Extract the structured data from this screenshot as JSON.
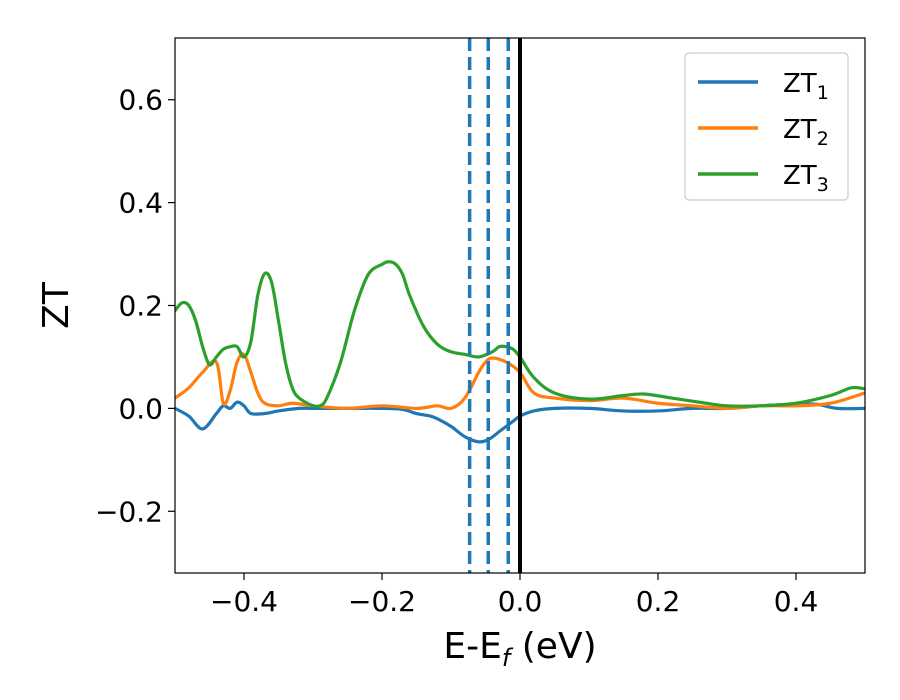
{
  "chart_data": {
    "type": "line",
    "xlabel": "E-E",
    "xlabel_sub": "f",
    "xlabel_unit": " (eV)",
    "ylabel": "ZT",
    "xlim": [
      -0.5,
      0.5
    ],
    "ylim": [
      -0.32,
      0.72
    ],
    "x_ticks": [
      -0.4,
      -0.2,
      0.0,
      0.2,
      0.4
    ],
    "x_tick_labels": [
      "−0.4",
      "−0.2",
      "0.0",
      "0.2",
      "0.4"
    ],
    "y_ticks": [
      -0.2,
      0.0,
      0.2,
      0.4,
      0.6
    ],
    "y_tick_labels": [
      "−0.2",
      "0.0",
      "0.2",
      "0.4",
      "0.6"
    ],
    "grid": false,
    "legend_position": "top-right",
    "vertical_lines": [
      {
        "x": -0.073,
        "style": "dashed",
        "color": "#1f77b4"
      },
      {
        "x": -0.046,
        "style": "dashed",
        "color": "#1f77b4"
      },
      {
        "x": -0.017,
        "style": "dashed",
        "color": "#1f77b4"
      },
      {
        "x": 0.0,
        "style": "solid",
        "color": "#000000"
      }
    ],
    "series": [
      {
        "name": "ZT",
        "sub": "1",
        "color": "#1f77b4",
        "x": [
          -0.5,
          -0.48,
          -0.46,
          -0.44,
          -0.43,
          -0.42,
          -0.41,
          -0.4,
          -0.39,
          -0.37,
          -0.35,
          -0.32,
          -0.3,
          -0.25,
          -0.2,
          -0.17,
          -0.15,
          -0.13,
          -0.12,
          -0.1,
          -0.08,
          -0.06,
          -0.045,
          -0.03,
          -0.02,
          -0.01,
          0.0,
          0.02,
          0.05,
          0.1,
          0.15,
          0.2,
          0.25,
          0.3,
          0.35,
          0.4,
          0.43,
          0.46,
          0.5
        ],
        "y": [
          0.0,
          -0.015,
          -0.04,
          -0.01,
          0.005,
          0.0,
          0.012,
          0.005,
          -0.01,
          -0.01,
          -0.005,
          0.0,
          0.0,
          0.0,
          0.0,
          -0.002,
          -0.01,
          -0.015,
          -0.02,
          -0.035,
          -0.055,
          -0.065,
          -0.06,
          -0.045,
          -0.035,
          -0.025,
          -0.015,
          -0.005,
          0.0,
          0.0,
          -0.005,
          -0.005,
          0.0,
          0.0,
          0.005,
          0.008,
          0.008,
          0.0,
          0.0
        ]
      },
      {
        "name": "ZT",
        "sub": "2",
        "color": "#ff7f0e",
        "x": [
          -0.5,
          -0.48,
          -0.46,
          -0.44,
          -0.43,
          -0.42,
          -0.41,
          -0.4,
          -0.39,
          -0.38,
          -0.37,
          -0.35,
          -0.33,
          -0.3,
          -0.25,
          -0.2,
          -0.15,
          -0.12,
          -0.1,
          -0.08,
          -0.06,
          -0.05,
          -0.04,
          -0.02,
          0.0,
          0.02,
          0.05,
          0.1,
          0.15,
          0.2,
          0.25,
          0.3,
          0.35,
          0.4,
          0.45,
          0.5
        ],
        "y": [
          0.02,
          0.04,
          0.07,
          0.09,
          0.01,
          0.035,
          0.09,
          0.105,
          0.07,
          0.03,
          0.01,
          0.005,
          0.01,
          0.005,
          0.0,
          0.005,
          0.0,
          0.005,
          0.0,
          0.02,
          0.07,
          0.09,
          0.098,
          0.09,
          0.07,
          0.03,
          0.02,
          0.015,
          0.02,
          0.01,
          0.005,
          0.0,
          0.005,
          0.005,
          0.01,
          0.03
        ]
      },
      {
        "name": "ZT",
        "sub": "3",
        "color": "#2ca02c",
        "x": [
          -0.5,
          -0.49,
          -0.48,
          -0.47,
          -0.46,
          -0.45,
          -0.44,
          -0.43,
          -0.42,
          -0.41,
          -0.4,
          -0.39,
          -0.38,
          -0.37,
          -0.36,
          -0.35,
          -0.34,
          -0.33,
          -0.32,
          -0.3,
          -0.29,
          -0.28,
          -0.26,
          -0.24,
          -0.22,
          -0.2,
          -0.19,
          -0.18,
          -0.17,
          -0.16,
          -0.14,
          -0.12,
          -0.1,
          -0.08,
          -0.06,
          -0.04,
          -0.03,
          -0.02,
          -0.01,
          0.0,
          0.02,
          0.05,
          0.1,
          0.15,
          0.18,
          0.22,
          0.27,
          0.3,
          0.35,
          0.4,
          0.45,
          0.48,
          0.5
        ],
        "y": [
          0.19,
          0.205,
          0.2,
          0.17,
          0.12,
          0.085,
          0.1,
          0.115,
          0.12,
          0.12,
          0.1,
          0.13,
          0.22,
          0.262,
          0.245,
          0.17,
          0.09,
          0.04,
          0.02,
          0.005,
          0.005,
          0.02,
          0.09,
          0.19,
          0.26,
          0.28,
          0.285,
          0.28,
          0.26,
          0.22,
          0.16,
          0.125,
          0.11,
          0.105,
          0.1,
          0.11,
          0.12,
          0.12,
          0.115,
          0.1,
          0.06,
          0.03,
          0.018,
          0.025,
          0.028,
          0.02,
          0.01,
          0.005,
          0.005,
          0.01,
          0.025,
          0.04,
          0.038
        ]
      }
    ]
  }
}
